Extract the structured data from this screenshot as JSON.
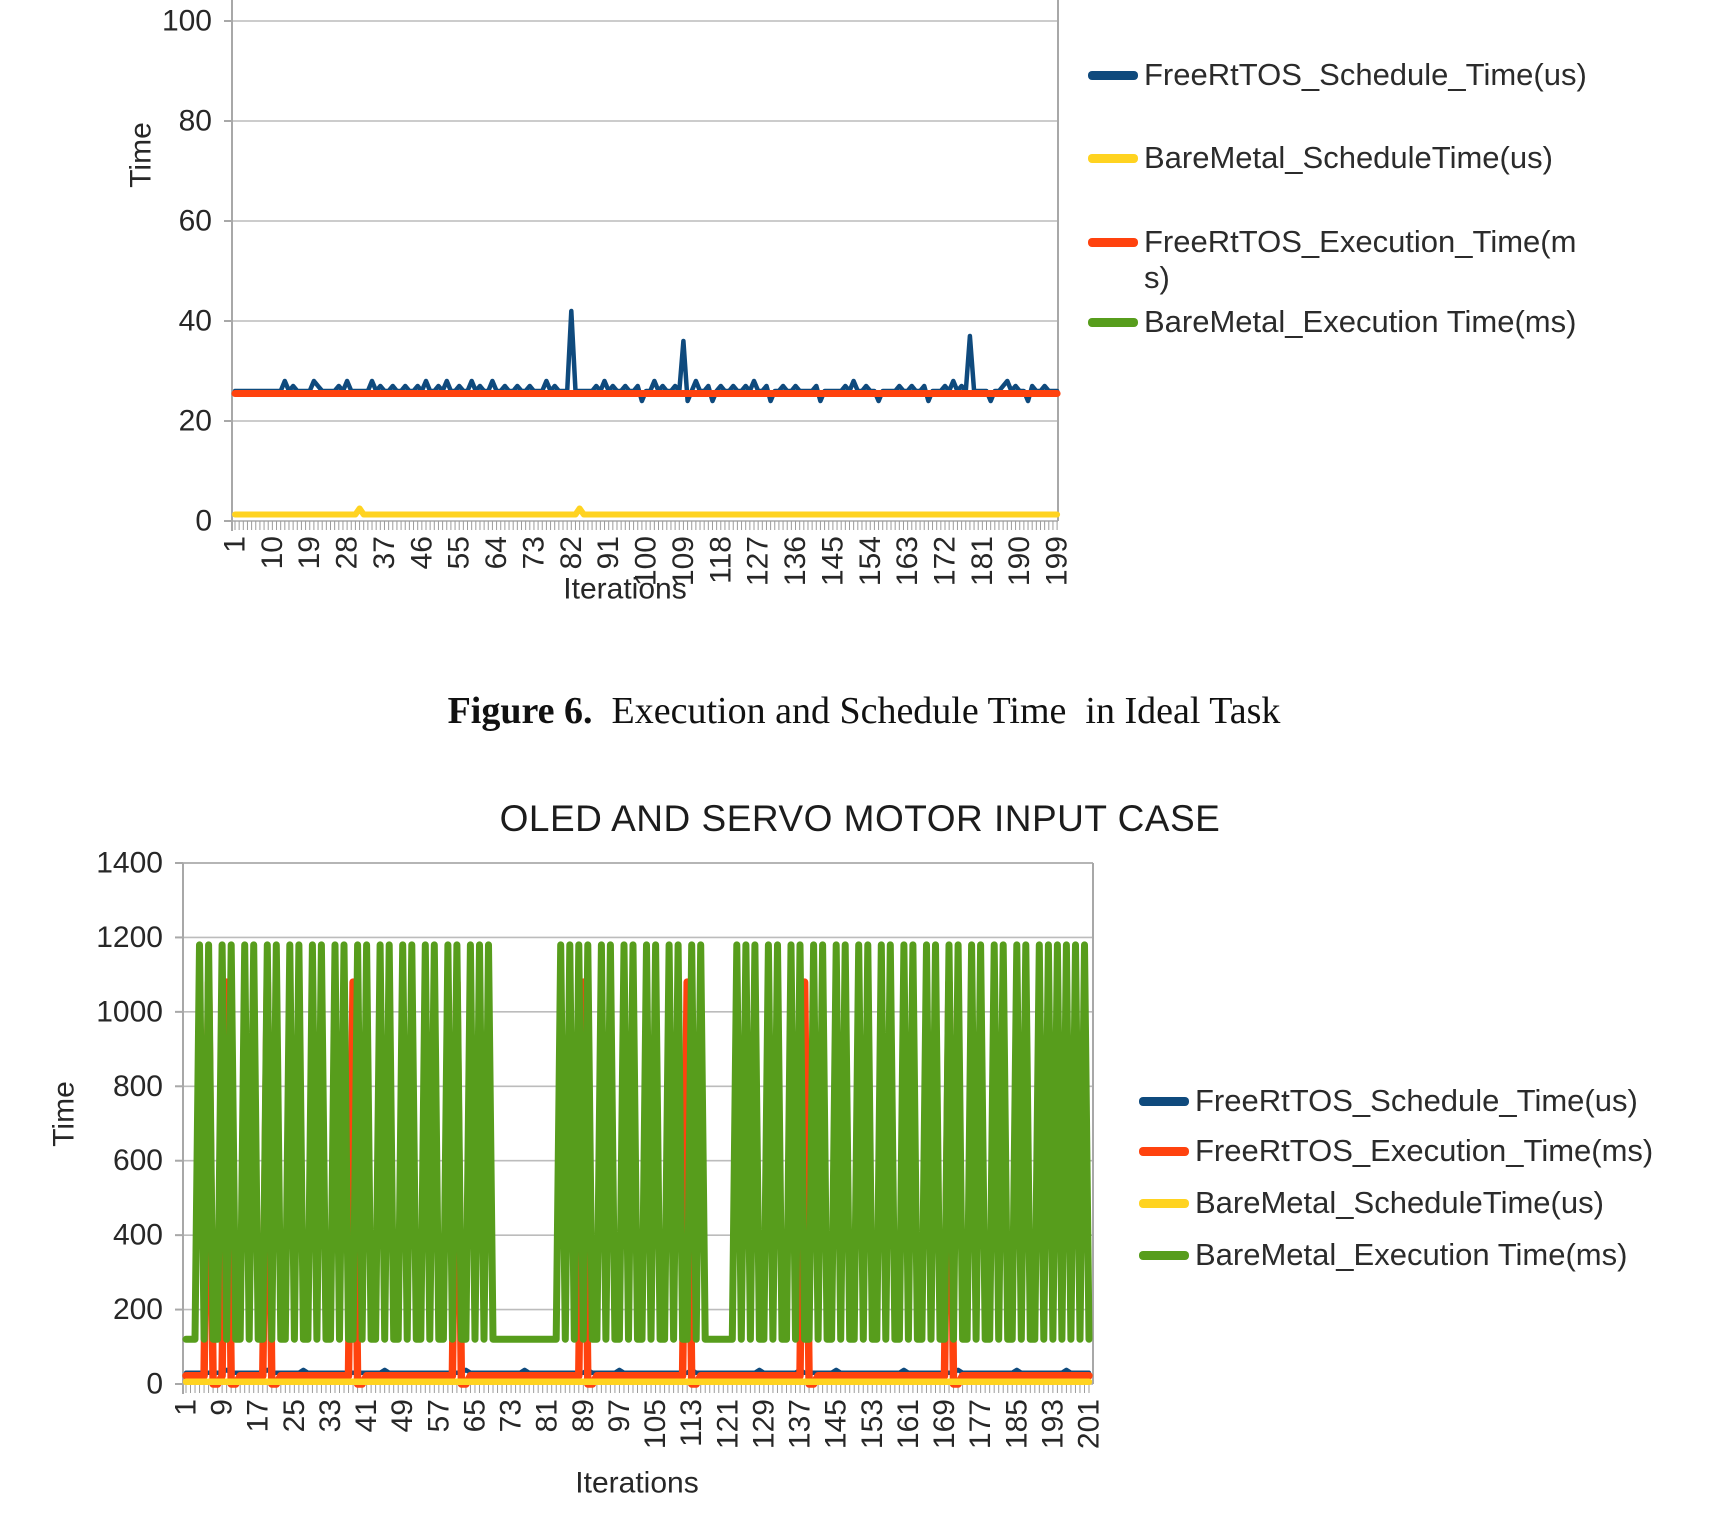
{
  "page": {
    "caption": {
      "label": "Figure 6.",
      "text": "  Execution and Schedule Time  in Ideal Task"
    }
  },
  "chart_data": [
    {
      "id": "ideal_task",
      "type": "line",
      "title": "",
      "xlabel": "Iterations",
      "ylabel": "Time",
      "x_range": [
        1,
        199
      ],
      "x_tick_step": 9,
      "x_tick_labels": [
        "1",
        "10",
        "19",
        "28",
        "37",
        "46",
        "55",
        "64",
        "73",
        "82",
        "91",
        "100",
        "109",
        "118",
        "127",
        "136",
        "145",
        "154",
        "163",
        "172",
        "181",
        "190",
        "199"
      ],
      "y_ticks": [
        0,
        20,
        40,
        60,
        80,
        100
      ],
      "visible_y_max": 104,
      "grid": true,
      "legend_position": "right",
      "legend": [
        {
          "label": "FreeRtTOS_Schedule_Time(us)",
          "color": "#0F4A7D"
        },
        {
          "label": "BareMetal_ScheduleTime(us)",
          "color": "#FFD320"
        },
        {
          "label": "FreeRtTOS_Execution_Time(ms)",
          "color": "#FF420E"
        },
        {
          "label": "BareMetal_Execution Time(ms)",
          "color": "#579D1C"
        }
      ],
      "series": [
        {
          "name": "BareMetal_Execution Time(ms)",
          "color": "#579D1C",
          "baseline": 25.5,
          "overrides": {}
        },
        {
          "name": "FreeRtTOS_Schedule_Time(us)",
          "color": "#0F4A7D",
          "baseline": 26,
          "overrides": {
            "13": 28,
            "15": 27,
            "20": 28,
            "21": 27,
            "26": 27,
            "28": 28,
            "34": 28,
            "36": 27,
            "39": 27,
            "42": 27,
            "45": 27,
            "47": 28,
            "50": 27,
            "52": 28,
            "55": 27,
            "58": 28,
            "60": 27,
            "63": 28,
            "66": 27,
            "69": 27,
            "72": 27,
            "76": 28,
            "78": 27,
            "82": 42,
            "88": 27,
            "90": 28,
            "92": 27,
            "95": 27,
            "98": 27,
            "99": 24,
            "102": 28,
            "104": 27,
            "107": 27,
            "109": 36,
            "110": 24,
            "112": 28,
            "115": 27,
            "116": 24,
            "118": 27,
            "121": 27,
            "124": 27,
            "126": 28,
            "129": 27,
            "130": 24,
            "133": 27,
            "136": 27,
            "141": 27,
            "142": 24,
            "148": 27,
            "150": 28,
            "153": 27,
            "156": 24,
            "161": 27,
            "164": 27,
            "167": 27,
            "168": 24,
            "172": 27,
            "174": 28,
            "176": 27,
            "178": 37,
            "183": 24,
            "186": 27,
            "187": 28,
            "189": 27,
            "192": 24,
            "193": 27,
            "196": 27
          }
        },
        {
          "name": "FreeRtTOS_Execution_Time(ms)",
          "color": "#FF420E",
          "baseline": 25.5,
          "overrides": {}
        },
        {
          "name": "BareMetal_ScheduleTime(us)",
          "color": "#FFD320",
          "baseline": 1.3,
          "overrides": {
            "31": 2.5,
            "84": 2.5
          }
        }
      ]
    },
    {
      "id": "oled_servo",
      "type": "line",
      "title": "OLED AND SERVO MOTOR INPUT CASE",
      "xlabel": "Iterations",
      "ylabel": "Time",
      "x_range": [
        1,
        201
      ],
      "x_tick_step": 8,
      "x_tick_labels": [
        "1",
        "9",
        "17",
        "25",
        "33",
        "41",
        "49",
        "57",
        "65",
        "73",
        "81",
        "89",
        "97",
        "105",
        "113",
        "121",
        "129",
        "137",
        "145",
        "153",
        "161",
        "169",
        "177",
        "185",
        "193",
        "201"
      ],
      "y_ticks": [
        0,
        200,
        400,
        600,
        800,
        1000,
        1200,
        1400
      ],
      "grid": true,
      "legend_position": "right",
      "legend": [
        {
          "label": "FreeRtTOS_Schedule_Time(us)",
          "color": "#0F4A7D"
        },
        {
          "label": "FreeRtTOS_Execution_Time(ms)",
          "color": "#FF420E"
        },
        {
          "label": "BareMetal_ScheduleTime(us)",
          "color": "#FFD320"
        },
        {
          "label": "BareMetal_Execution Time(ms)",
          "color": "#579D1C"
        }
      ],
      "series": [
        {
          "name": "FreeRtTOS_Schedule_Time(us)",
          "color": "#0F4A7D",
          "baseline": 30,
          "overrides": {
            "10": 38,
            "19": 38,
            "27": 38,
            "45": 38,
            "63": 38,
            "76": 38,
            "90": 38,
            "97": 38,
            "113": 38,
            "128": 38,
            "137": 38,
            "145": 38,
            "160": 38,
            "172": 38,
            "185": 38,
            "196": 38
          }
        },
        {
          "name": "FreeRtTOS_Execution_Time(ms)",
          "color": "#FF420E",
          "baseline": 22,
          "overrides": {
            "6": 1080,
            "7": 0,
            "8": 0,
            "10": 1080,
            "11": 0,
            "12": 0,
            "19": 1080,
            "20": 0,
            "21": 0,
            "38": 1080,
            "39": 0,
            "40": 0,
            "61": 1080,
            "62": 0,
            "63": 0,
            "89": 1080,
            "90": 0,
            "91": 0,
            "112": 1080,
            "113": 0,
            "114": 0,
            "138": 1080,
            "139": 0,
            "140": 0,
            "170": 1080,
            "171": 0,
            "172": 0
          }
        },
        {
          "name": "BareMetal_ScheduleTime(us)",
          "color": "#FFD320",
          "baseline": 6,
          "overrides": {}
        },
        {
          "name": "BareMetal_Execution Time(ms)",
          "color": "#579D1C",
          "baseline": 120,
          "overrides": {
            "4": 1180,
            "6": 1180,
            "9": 1180,
            "11": 1180,
            "14": 1180,
            "16": 1180,
            "19": 1180,
            "21": 1180,
            "24": 1180,
            "26": 1180,
            "29": 1180,
            "31": 1180,
            "34": 1180,
            "36": 1180,
            "39": 1180,
            "41": 1180,
            "44": 1180,
            "46": 1180,
            "49": 1180,
            "51": 1180,
            "54": 1180,
            "56": 1180,
            "59": 1180,
            "61": 1180,
            "64": 1180,
            "66": 1180,
            "68": 1180,
            "84": 1180,
            "86": 1180,
            "88": 1180,
            "90": 1180,
            "93": 1180,
            "95": 1180,
            "98": 1180,
            "100": 1180,
            "103": 1180,
            "105": 1180,
            "108": 1180,
            "110": 1180,
            "113": 1180,
            "115": 1180,
            "123": 1180,
            "125": 1180,
            "127": 1180,
            "130": 1180,
            "132": 1180,
            "135": 1180,
            "137": 1180,
            "140": 1180,
            "142": 1180,
            "145": 1180,
            "147": 1180,
            "150": 1180,
            "152": 1180,
            "155": 1180,
            "157": 1180,
            "160": 1180,
            "162": 1180,
            "165": 1180,
            "167": 1180,
            "170": 1180,
            "172": 1180,
            "175": 1180,
            "177": 1180,
            "180": 1180,
            "182": 1180,
            "185": 1180,
            "187": 1180,
            "190": 1180,
            "192": 1180,
            "194": 1180,
            "196": 1180,
            "198": 1180,
            "200": 1180
          }
        }
      ]
    }
  ]
}
